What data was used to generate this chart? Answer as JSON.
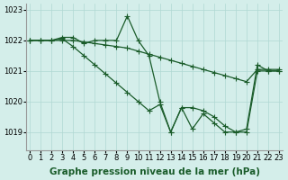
{
  "xlabel": "Graphe pression niveau de la mer (hPa)",
  "background_color": "#d4eeea",
  "grid_color": "#b0d8d2",
  "line_color": "#1a5c2a",
  "x_min": 0,
  "x_max": 23,
  "y_min": 1018.4,
  "y_max": 1023.2,
  "yticks": [
    1019,
    1020,
    1021,
    1022,
    1023
  ],
  "xticks": [
    0,
    1,
    2,
    3,
    4,
    5,
    6,
    7,
    8,
    9,
    10,
    11,
    12,
    13,
    14,
    15,
    16,
    17,
    18,
    19,
    20,
    21,
    22,
    23
  ],
  "series": [
    {
      "x": [
        0,
        1,
        2,
        3,
        4,
        5,
        6,
        7,
        8,
        9,
        10,
        11,
        12,
        13,
        14,
        15,
        16,
        17,
        18,
        19,
        20,
        21,
        22,
        23
      ],
      "y": [
        1022.0,
        1022.0,
        1022.0,
        1022.1,
        1022.1,
        1021.9,
        1022.0,
        1022.0,
        1022.0,
        1022.8,
        1022.0,
        1021.5,
        1020.0,
        1019.0,
        1019.8,
        1019.8,
        1019.7,
        1019.5,
        1019.2,
        1019.0,
        1019.0,
        1021.0,
        1021.0,
        1021.0
      ]
    },
    {
      "x": [
        0,
        1,
        2,
        3,
        4,
        5,
        6,
        7,
        8,
        9,
        10,
        11,
        12,
        13,
        14,
        15,
        16,
        17,
        18,
        19,
        20,
        21,
        22,
        23
      ],
      "y": [
        1022.0,
        1022.0,
        1022.0,
        1022.0,
        1022.0,
        1021.95,
        1021.9,
        1021.85,
        1021.8,
        1021.75,
        1021.65,
        1021.55,
        1021.45,
        1021.35,
        1021.25,
        1021.15,
        1021.05,
        1020.95,
        1020.85,
        1020.75,
        1020.65,
        1021.05,
        1021.05,
        1021.05
      ]
    },
    {
      "x": [
        0,
        1,
        2,
        3,
        4,
        5,
        6,
        7,
        8,
        9,
        10,
        11,
        12,
        13,
        14,
        15,
        16,
        17,
        18,
        19,
        20,
        21,
        22,
        23
      ],
      "y": [
        1022.0,
        1022.0,
        1022.0,
        1022.05,
        1021.8,
        1021.5,
        1021.2,
        1020.9,
        1020.6,
        1020.3,
        1020.0,
        1019.7,
        1019.9,
        1019.0,
        1019.8,
        1019.1,
        1019.6,
        1019.3,
        1019.0,
        1019.0,
        1019.1,
        1021.2,
        1021.0,
        1021.0
      ]
    }
  ],
  "marker": "+",
  "marker_size": 4,
  "line_width": 0.9,
  "xlabel_fontsize": 7.5,
  "tick_fontsize": 6.0
}
